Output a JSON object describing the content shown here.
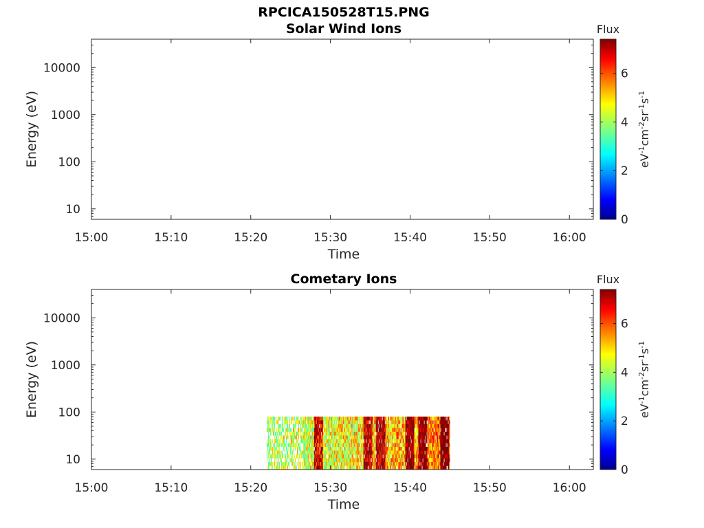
{
  "figure_title": "RPCICA150528T15.PNG",
  "chart_data": [
    {
      "type": "heatmap",
      "title": "Solar Wind Ions",
      "xlabel": "Time",
      "ylabel": "Energy (eV)",
      "y_scale": "log",
      "x_range": [
        "15:00",
        "16:03"
      ],
      "ylim": [
        6,
        40000
      ],
      "x_ticks": [
        "15:00",
        "15:10",
        "15:20",
        "15:30",
        "15:40",
        "15:50",
        "16:00"
      ],
      "y_ticks": [
        "10",
        "100",
        "1000",
        "10000"
      ],
      "colorbar": {
        "title": "Flux",
        "unit_label": "eV-1cm-2sr-1s-1",
        "ticks": [
          "0",
          "2",
          "4",
          "6"
        ],
        "range": [
          0,
          7.4
        ],
        "colormap": "jet"
      },
      "data": []
    },
    {
      "type": "heatmap",
      "title": "Cometary Ions",
      "xlabel": "Time",
      "ylabel": "Energy (eV)",
      "y_scale": "log",
      "x_range": [
        "15:00",
        "16:03"
      ],
      "ylim": [
        6,
        40000
      ],
      "x_ticks": [
        "15:00",
        "15:10",
        "15:20",
        "15:30",
        "15:40",
        "15:50",
        "16:00"
      ],
      "y_ticks": [
        "10",
        "100",
        "1000",
        "10000"
      ],
      "colorbar": {
        "title": "Flux",
        "unit_label": "eV-1cm-2sr-1s-1",
        "ticks": [
          "0",
          "2",
          "4",
          "6"
        ],
        "range": [
          0,
          7.4
        ],
        "colormap": "jet"
      },
      "data": [
        {
          "time_start": "15:22",
          "time_end": "15:45",
          "energy_range": [
            6,
            80
          ],
          "flux_range": [
            4,
            7.4
          ]
        }
      ]
    }
  ]
}
